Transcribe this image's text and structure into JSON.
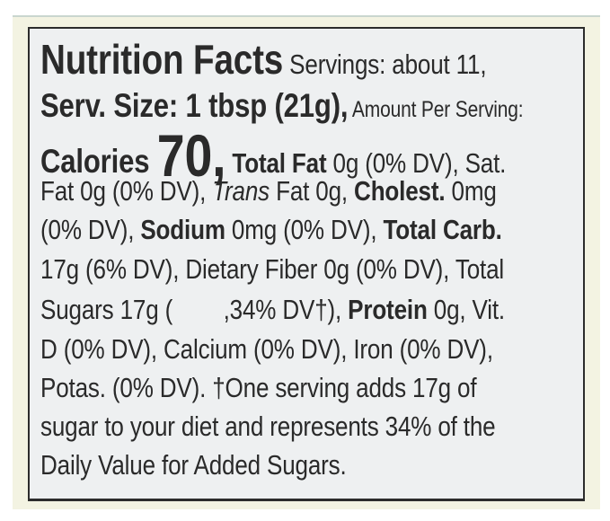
{
  "label": {
    "lines": [
      [
        {
          "t": "Nutrition Facts",
          "s": "xl"
        },
        {
          "t": " Servings: about 11,",
          "s": ""
        }
      ],
      [
        {
          "t": "Serv. Size: 1 tbsp (21g),",
          "s": "l2b"
        },
        {
          "t": " Amount Per Serving:",
          "s": "sm"
        }
      ],
      [
        {
          "t": "Calories ",
          "s": "l2b"
        },
        {
          "t": "70,",
          "s": "xxl"
        },
        {
          "t": " Total Fat",
          "s": "b"
        },
        {
          "t": " 0g (0% DV), Sat.",
          "s": ""
        }
      ],
      [
        {
          "t": "Fat 0g (0% DV), ",
          "s": ""
        },
        {
          "t": "Trans",
          "s": "i"
        },
        {
          "t": " Fat 0g, ",
          "s": ""
        },
        {
          "t": "Cholest.",
          "s": "b"
        },
        {
          "t": " 0mg",
          "s": ""
        }
      ],
      [
        {
          "t": "(0% DV), ",
          "s": ""
        },
        {
          "t": "Sodium",
          "s": "b"
        },
        {
          "t": " 0mg (0% DV), ",
          "s": ""
        },
        {
          "t": "Total Carb.",
          "s": "b"
        }
      ],
      [
        {
          "t": "17g (6% DV), Dietary Fiber 0g (0% DV), Total",
          "s": ""
        }
      ],
      [
        {
          "t": "Sugars 17g (        ,34% DV†), ",
          "s": ""
        },
        {
          "t": "Protein",
          "s": "b"
        },
        {
          "t": " 0g, Vit.",
          "s": ""
        }
      ],
      [
        {
          "t": "D (0% DV), Calcium (0% DV), Iron (0% DV),",
          "s": ""
        }
      ],
      [
        {
          "t": "Potas. (0% DV). †One serving adds 17g of",
          "s": ""
        }
      ],
      [
        {
          "t": "sugar to your diet and represents 34% of the",
          "s": ""
        }
      ],
      [
        {
          "t": "Daily Value for Added Sugars.",
          "s": ""
        }
      ]
    ]
  }
}
